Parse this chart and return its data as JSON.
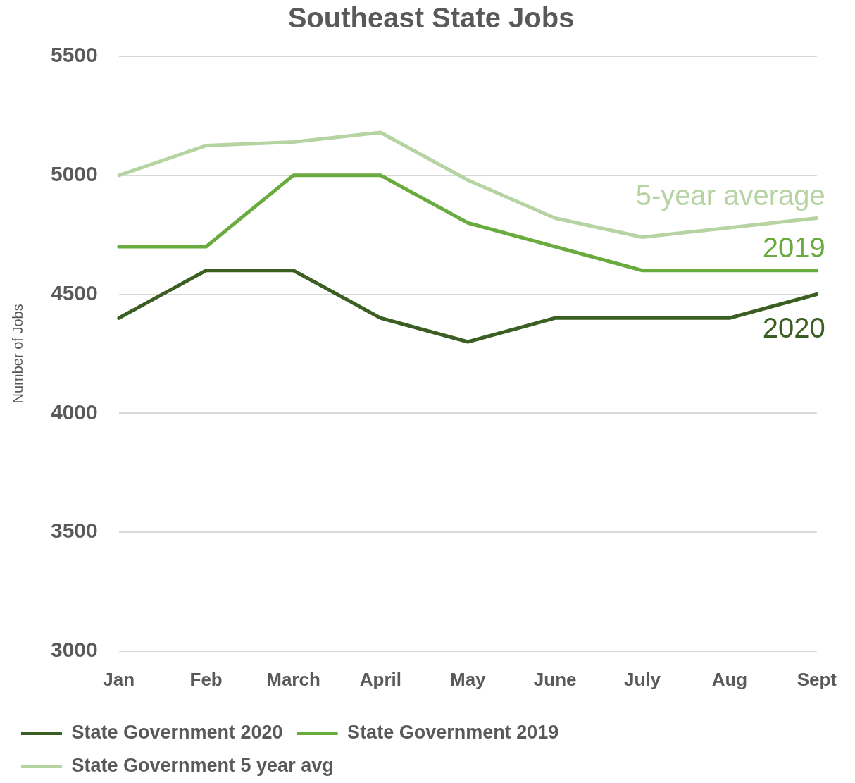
{
  "chart_data": {
    "type": "line",
    "title": "Southeast State Jobs",
    "ylabel": "Number of Jobs",
    "categories": [
      "Jan",
      "Feb",
      "March",
      "April",
      "May",
      "June",
      "July",
      "Aug",
      "Sept"
    ],
    "series": [
      {
        "name": "State Government 2020",
        "color": "#3b5e23",
        "values": [
          4400,
          4600,
          4600,
          4400,
          4300,
          4400,
          4400,
          4400,
          4500
        ]
      },
      {
        "name": "State Government 2019",
        "color": "#6aab3f",
        "values": [
          4700,
          4700,
          5000,
          5000,
          4800,
          4700,
          4600,
          4600,
          4600
        ]
      },
      {
        "name": "State Government 5 year avg",
        "color": "#b6d3a2",
        "values": [
          5000,
          5125,
          5140,
          5180,
          4980,
          4820,
          4740,
          4780,
          4820
        ]
      }
    ],
    "annotations": [
      "2020",
      "2019",
      "5-year average"
    ],
    "ylim": [
      3000,
      5500
    ],
    "yticks": [
      3000,
      3500,
      4000,
      4500,
      5000,
      5500
    ],
    "grid": "y",
    "legend": "bottom",
    "marker": "none",
    "line_style": "solid"
  }
}
